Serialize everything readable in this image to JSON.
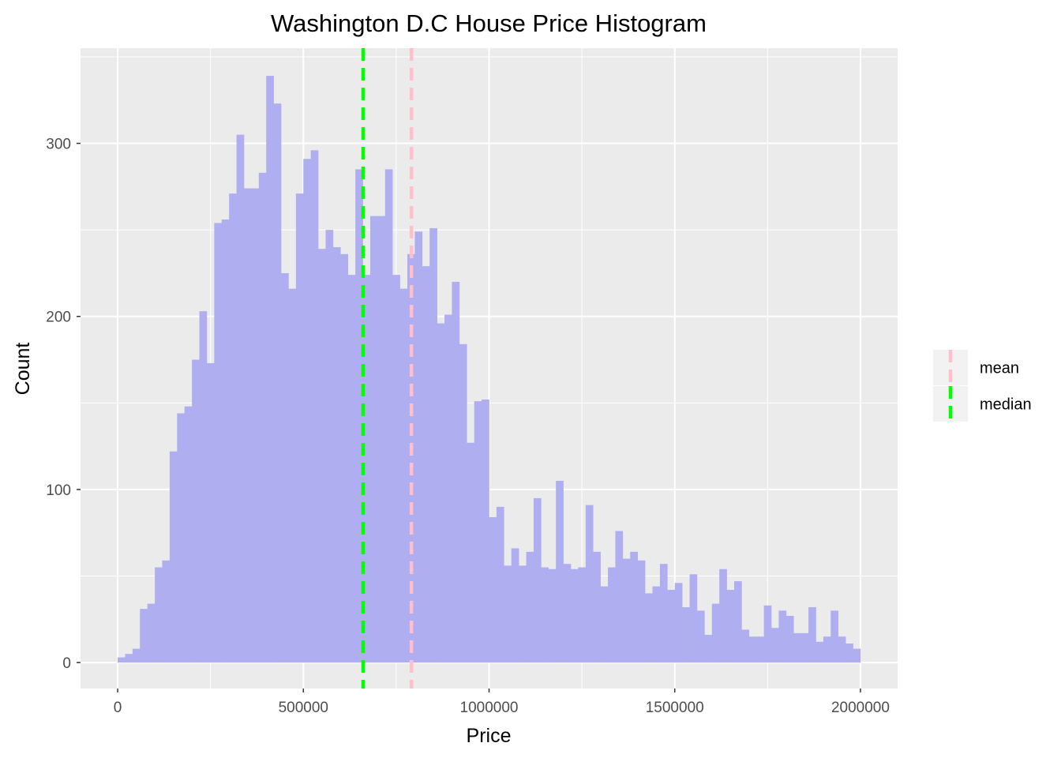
{
  "chart_data": {
    "type": "bar",
    "title": "Washington D.C House Price Histogram",
    "xlabel": "Price",
    "ylabel": "Count",
    "xlim": [
      -100000,
      2100000
    ],
    "ylim": [
      -15,
      355
    ],
    "x_ticks": [
      0,
      500000,
      1000000,
      1500000,
      2000000
    ],
    "x_tick_labels": [
      "0",
      "500000",
      "1000000",
      "1500000",
      "2000000"
    ],
    "y_ticks": [
      0,
      100,
      200,
      300
    ],
    "y_tick_labels": [
      "0",
      "100",
      "200",
      "300"
    ],
    "bin_width": 20000,
    "bin_start": 0,
    "values": [
      3,
      5,
      8,
      31,
      34,
      55,
      59,
      122,
      144,
      148,
      175,
      203,
      173,
      254,
      256,
      271,
      305,
      274,
      274,
      283,
      339,
      323,
      225,
      216,
      271,
      291,
      296,
      239,
      250,
      240,
      236,
      224,
      285,
      224,
      258,
      258,
      285,
      224,
      216,
      236,
      249,
      229,
      251,
      196,
      201,
      220,
      184,
      127,
      151,
      152,
      84,
      90,
      56,
      66,
      56,
      64,
      95,
      55,
      54,
      105,
      57,
      54,
      55,
      91,
      64,
      44,
      55,
      76,
      60,
      64,
      59,
      40,
      44,
      57,
      42,
      46,
      32,
      51,
      30,
      16,
      34,
      54,
      42,
      47,
      19,
      15,
      15,
      33,
      20,
      30,
      27,
      17,
      17,
      32,
      12,
      15,
      30,
      15,
      11,
      8
    ],
    "bar_color": "#aeaef0",
    "panel_background": "#ebebeb",
    "grid": true,
    "vlines": [
      {
        "name": "mean",
        "x": 791000,
        "color": "#ffc0cb",
        "style": "dashed"
      },
      {
        "name": "median",
        "x": 661000,
        "color": "#00ff00",
        "style": "dashed"
      }
    ],
    "legend": {
      "placement": "right",
      "entries": [
        {
          "label": "mean",
          "color": "#ffc0cb"
        },
        {
          "label": "median",
          "color": "#00ff00"
        }
      ]
    }
  }
}
